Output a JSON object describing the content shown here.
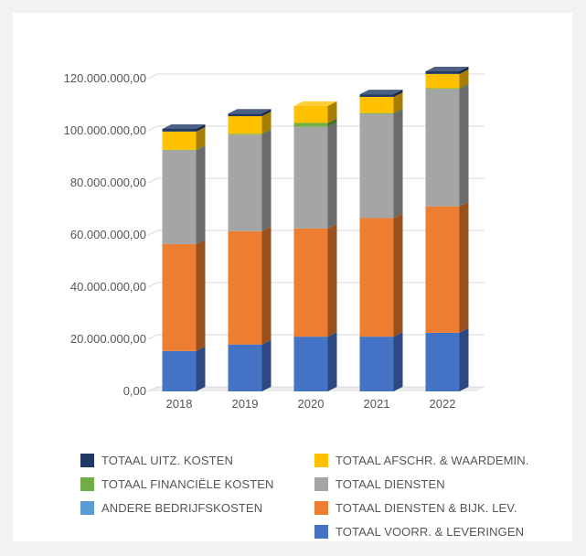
{
  "chart_data": {
    "type": "bar",
    "stacked": true,
    "three_d": true,
    "categories": [
      "2018",
      "2019",
      "2020",
      "2021",
      "2022"
    ],
    "y_ticks": [
      "0,00",
      "20.000.000,00",
      "40.000.000,00",
      "60.000.000,00",
      "80.000.000,00",
      "100.000.000,00",
      "120.000.000,00"
    ],
    "ylim": [
      0,
      120000000
    ],
    "grid": true,
    "legend_position": "bottom",
    "series": [
      {
        "name": "TOTAAL VOORR. & LEVERINGEN",
        "color": "#4472c4",
        "values": [
          15500000,
          18000000,
          21000000,
          21000000,
          22500000
        ]
      },
      {
        "name": "TOTAAL DIENSTEN & BIJK. LEV.",
        "color": "#ed7d31",
        "values": [
          41000000,
          43500000,
          41500000,
          45500000,
          48500000
        ]
      },
      {
        "name": "ANDERE BEDRIJFSKOSTEN",
        "color": "#5b9bd5",
        "values": [
          0,
          0,
          0,
          0,
          0
        ]
      },
      {
        "name": "TOTAAL DIENSTEN",
        "color": "#a5a5a5",
        "values": [
          36000000,
          37000000,
          39000000,
          40000000,
          45000000
        ]
      },
      {
        "name": "TOTAAL FINANCIËLE KOSTEN",
        "color": "#70ad47",
        "values": [
          200000,
          300000,
          1500000,
          300000,
          300000
        ]
      },
      {
        "name": "TOTAAL AFSCHR. & WAARDEMIN.",
        "color": "#ffc000",
        "values": [
          7000000,
          6800000,
          6500000,
          6200000,
          5500000
        ]
      },
      {
        "name": "TOTAAL UITZ. KOSTEN",
        "color": "#1f3864",
        "values": [
          1000000,
          1000000,
          0,
          1000000,
          1000000
        ]
      }
    ]
  },
  "legend": [
    {
      "label": "TOTAAL UITZ. KOSTEN",
      "color": "#1f3864"
    },
    {
      "label": "TOTAAL AFSCHR. & WAARDEMIN.",
      "color": "#ffc000"
    },
    {
      "label": "TOTAAL FINANCIËLE KOSTEN",
      "color": "#70ad47"
    },
    {
      "label": "TOTAAL DIENSTEN",
      "color": "#a5a5a5"
    },
    {
      "label": "ANDERE BEDRIJFSKOSTEN",
      "color": "#5b9bd5"
    },
    {
      "label": "TOTAAL DIENSTEN & BIJK. LEV.",
      "color": "#ed7d31"
    },
    {
      "label": "TOTAAL VOORR. & LEVERINGEN",
      "color": "#4472c4"
    }
  ]
}
